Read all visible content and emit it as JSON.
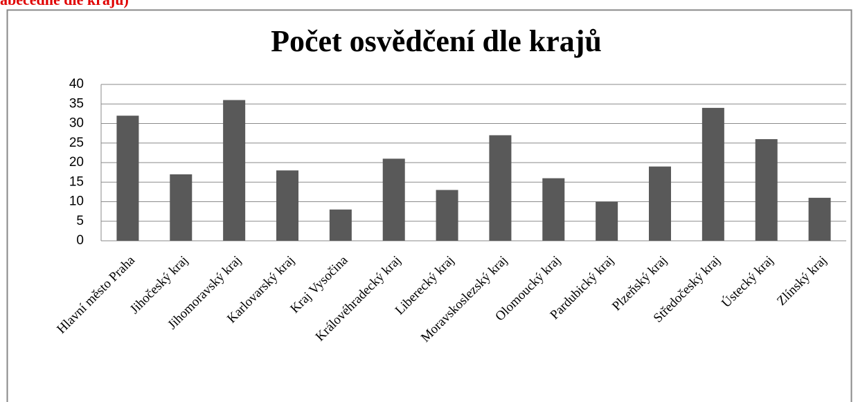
{
  "caption": "abecedně dle krajů)",
  "chart_data": {
    "type": "bar",
    "title": "Počet osvědčení dle krajů",
    "categories": [
      "Hlavní město Praha",
      "Jihočeský kraj",
      "Jihomoravský kraj",
      "Karlovarský kraj",
      "Kraj Vysočina",
      "Královéhradecký kraj",
      "Liberecký kraj",
      "Moravskoslezský kraj",
      "Olomoucký kraj",
      "Pardubický kraj",
      "Plzeňský kraj",
      "Středočeský kraj",
      "Ústecký kraj",
      "Zlínský kraj"
    ],
    "values": [
      32,
      17,
      36,
      18,
      8,
      21,
      13,
      27,
      16,
      10,
      19,
      34,
      26,
      11
    ],
    "color": "#595959",
    "ylim": [
      0,
      40
    ],
    "yticks": [
      0,
      5,
      10,
      15,
      20,
      25,
      30,
      35,
      40
    ],
    "grid": true
  }
}
